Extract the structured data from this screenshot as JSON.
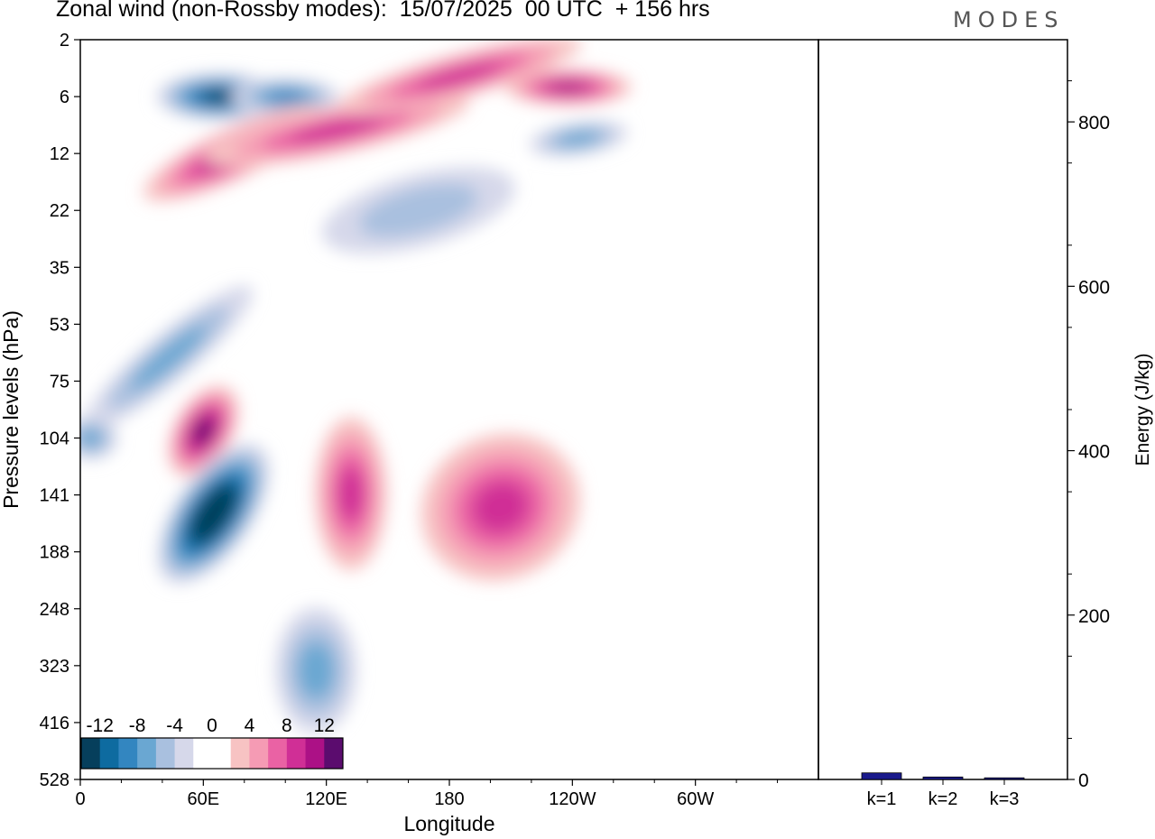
{
  "header": {
    "title": "Zonal wind (non-Rossby modes):  15/07/2025  00 UTC  + 156 hrs",
    "logo": "MODES"
  },
  "chart_data": [
    {
      "type": "heatmap",
      "title": "Zonal wind (non-Rossby modes):  15/07/2025  00 UTC  + 156 hrs",
      "xlabel": "Longitude",
      "ylabel": "Pressure levels (hPa)",
      "x_ticks": [
        "0",
        "60E",
        "120E",
        "180",
        "120W",
        "60W"
      ],
      "x_tick_values": [
        0,
        60,
        120,
        180,
        240,
        300
      ],
      "x_range": [
        0,
        360
      ],
      "y_ticks": [
        "2",
        "6",
        "12",
        "22",
        "35",
        "53",
        "75",
        "104",
        "141",
        "188",
        "248",
        "323",
        "416",
        "528"
      ],
      "colorbar": {
        "labels": [
          "-12",
          "-8",
          "-4",
          "0",
          "4",
          "8",
          "12"
        ],
        "levels": [
          -14,
          -12,
          -10,
          -8,
          -6,
          -4,
          -2,
          0,
          2,
          4,
          6,
          8,
          10,
          12,
          14
        ],
        "colors": [
          "#063f5c",
          "#0e6ba0",
          "#3386c0",
          "#6aa7d2",
          "#a9c0df",
          "#d6d8ea",
          "#ffffff",
          "#ffffff",
          "#f7c3c3",
          "#f59bb4",
          "#ea62a4",
          "#d02f96",
          "#ac1186",
          "#5b0c6e"
        ]
      },
      "features": [
        {
          "lon": 68,
          "lev": 6,
          "value": -11
        },
        {
          "lon": 100,
          "lev": 6,
          "value": -8
        },
        {
          "lon": 243,
          "lev": 10,
          "value": -6
        },
        {
          "lon": 75,
          "lev": 12,
          "value": 9
        },
        {
          "lon": 125,
          "lev": 9,
          "value": 8
        },
        {
          "lon": 185,
          "lev": 4,
          "value": 8
        },
        {
          "lon": 238,
          "lev": 5,
          "value": 10
        },
        {
          "lon": 60,
          "lev": 100,
          "value": 11
        },
        {
          "lon": 65,
          "lev": 155,
          "value": -15
        },
        {
          "lon": 43,
          "lev": 65,
          "value": -5
        },
        {
          "lon": 5,
          "lev": 104,
          "value": -6
        },
        {
          "lon": 115,
          "lev": 330,
          "value": -6
        },
        {
          "lon": 132,
          "lev": 140,
          "value": 7
        },
        {
          "lon": 205,
          "lev": 150,
          "value": 7
        },
        {
          "lon": 165,
          "lev": 22,
          "value": -3
        }
      ]
    },
    {
      "type": "bar",
      "categories": [
        "k=1",
        "k=2",
        "k=3"
      ],
      "values": [
        8,
        3,
        2
      ],
      "ylabel": "Energy (J/kg)",
      "ylim": [
        0,
        900
      ],
      "y_ticks": [
        0,
        200,
        400,
        600,
        800
      ],
      "color": "#1a1a8c"
    }
  ]
}
